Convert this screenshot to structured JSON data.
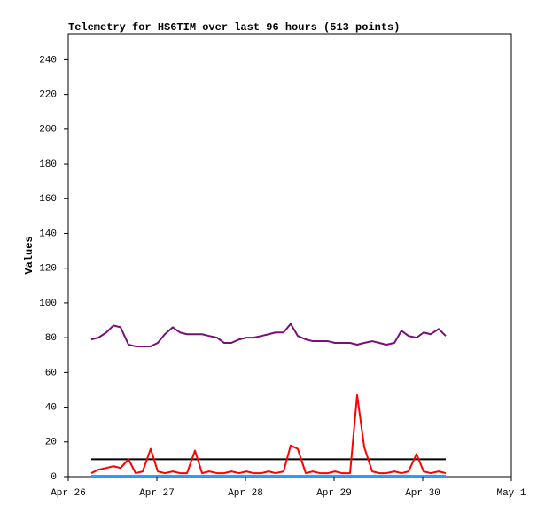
{
  "chart_data": {
    "type": "line",
    "title": "Telemetry for HS6TIM over last 96 hours (513 points)",
    "y_label": "Values",
    "x": [
      26.26,
      26.34,
      26.43,
      26.51,
      26.59,
      26.68,
      26.76,
      26.84,
      26.93,
      27.01,
      27.09,
      27.18,
      27.26,
      27.34,
      27.43,
      27.51,
      27.59,
      27.68,
      27.76,
      27.84,
      27.93,
      28.01,
      28.09,
      28.18,
      28.26,
      28.34,
      28.43,
      28.51,
      28.59,
      28.68,
      28.76,
      28.84,
      28.93,
      29.01,
      29.09,
      29.18,
      29.26,
      29.34,
      29.43,
      29.51,
      29.59,
      29.68,
      29.76,
      29.84,
      29.93,
      30.01,
      30.09,
      30.18,
      30.26
    ],
    "xlim": [
      26,
      31
    ],
    "xticks": [
      {
        "value": 26,
        "label": "Apr 26"
      },
      {
        "value": 27,
        "label": "Apr 27"
      },
      {
        "value": 28,
        "label": "Apr 28"
      },
      {
        "value": 29,
        "label": "Apr 29"
      },
      {
        "value": 30,
        "label": "Apr 30"
      },
      {
        "value": 31,
        "label": "May 1"
      }
    ],
    "ylim": [
      0,
      255
    ],
    "yticks": [
      0,
      20,
      40,
      60,
      80,
      100,
      120,
      140,
      160,
      180,
      200,
      220,
      240
    ],
    "series": [
      {
        "color": "#7a0f7a",
        "values": [
          79,
          80,
          83,
          87,
          86,
          76,
          75,
          75,
          75,
          77,
          82,
          86,
          83,
          82,
          82,
          82,
          81,
          80,
          77,
          77,
          79,
          80,
          80,
          81,
          82,
          83,
          83,
          88,
          81,
          79,
          78,
          78,
          78,
          77,
          77,
          77,
          76,
          77,
          78,
          77,
          76,
          77,
          84,
          81,
          80,
          83,
          82,
          85,
          81
        ]
      },
      {
        "color": "#000000",
        "values": [
          10,
          10,
          10,
          10,
          10,
          10,
          10,
          10,
          10,
          10,
          10,
          10,
          10,
          10,
          10,
          10,
          10,
          10,
          10,
          10,
          10,
          10,
          10,
          10,
          10,
          10,
          10,
          10,
          10,
          10,
          10,
          10,
          10,
          10,
          10,
          10,
          10,
          10,
          10,
          10,
          10,
          10,
          10,
          10,
          10,
          10,
          10,
          10,
          10
        ]
      },
      {
        "color": "#ff0000",
        "values": [
          2,
          4,
          5,
          6,
          5,
          10,
          2,
          3,
          16,
          3,
          2,
          3,
          2,
          2,
          15,
          2,
          3,
          2,
          2,
          3,
          2,
          3,
          2,
          2,
          3,
          2,
          3,
          18,
          16,
          2,
          3,
          2,
          2,
          3,
          2,
          2,
          47,
          17,
          3,
          2,
          2,
          3,
          2,
          3,
          13,
          3,
          2,
          3,
          2
        ]
      },
      {
        "color": "#3399ff",
        "values": [
          0.5,
          0.5,
          0.5,
          0.5,
          0.5,
          0.5,
          0.5,
          0.5,
          0.5,
          0.5,
          0.5,
          0.5,
          0.5,
          0.5,
          0.5,
          0.5,
          0.5,
          0.5,
          0.5,
          0.5,
          0.5,
          0.5,
          0.5,
          0.5,
          0.5,
          0.5,
          0.5,
          0.5,
          0.5,
          0.5,
          0.5,
          0.5,
          0.5,
          0.5,
          0.5,
          0.5,
          0.5,
          0.5,
          0.5,
          0.5,
          0.5,
          0.5,
          0.5,
          0.5,
          0.5,
          0.5,
          0.5,
          0.5,
          0.5
        ]
      }
    ]
  }
}
